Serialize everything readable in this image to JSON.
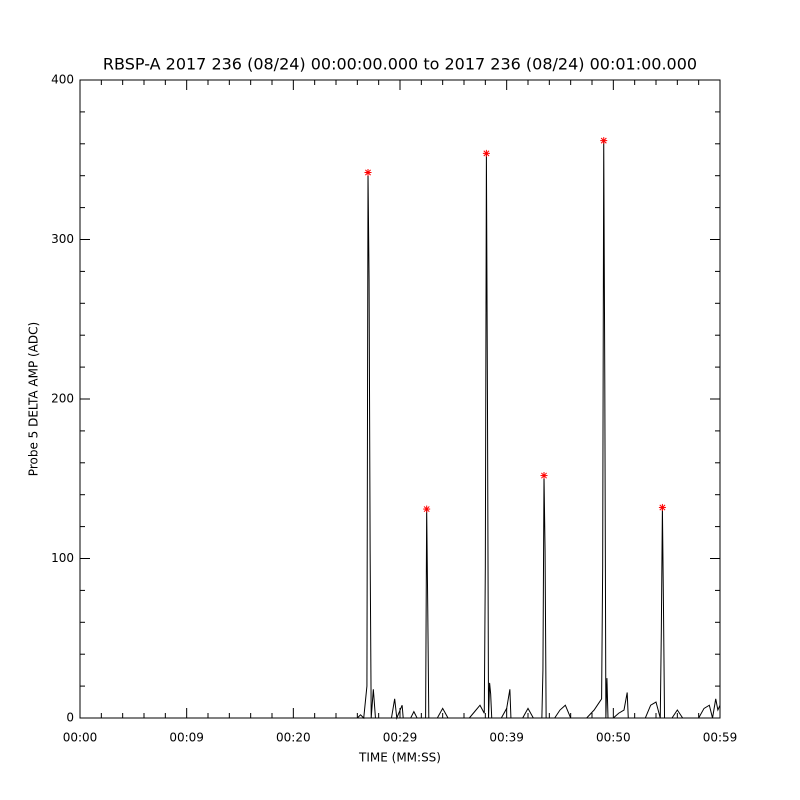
{
  "chart_data": {
    "type": "line",
    "title": "RBSP-A 2017 236 (08/24) 00:00:00.000 to 2017 236 (08/24) 00:01:00.000",
    "x_label": "TIME (MM:SS)",
    "y_label": "Probe 5 DELTA AMP (ADC)",
    "xlim": [
      0,
      60
    ],
    "xticks": [
      {
        "value": 0,
        "label": "00:00"
      },
      {
        "value": 10,
        "label": "00:09"
      },
      {
        "value": 20,
        "label": "00:20"
      },
      {
        "value": 30,
        "label": "00:29"
      },
      {
        "value": 40,
        "label": "00:39"
      },
      {
        "value": 50,
        "label": "00:50"
      },
      {
        "value": 60,
        "label": "00:59"
      }
    ],
    "ylim": [
      0,
      400
    ],
    "yticks": [
      0,
      100,
      200,
      300,
      400
    ],
    "series": [
      {
        "color": "#000000",
        "x": [
          0,
          26.0,
          26.3,
          26.6,
          26.9,
          27.0,
          27.1,
          27.2,
          27.3,
          27.5,
          27.7,
          29.2,
          29.5,
          29.7,
          30.2,
          30.3,
          31.0,
          31.3,
          31.6,
          32.4,
          32.5,
          32.6,
          32.7,
          33.5,
          34.0,
          34.5,
          36.5,
          37.0,
          37.5,
          37.9,
          38.0,
          38.1,
          38.2,
          38.3,
          38.4,
          38.5,
          38.6,
          39.5,
          40.0,
          40.3,
          40.4,
          41.5,
          42.0,
          42.5,
          43.3,
          43.4,
          43.5,
          43.6,
          43.7,
          44.5,
          45.0,
          45.5,
          46.0,
          47.5,
          48.2,
          48.7,
          48.9,
          49.0,
          49.1,
          49.2,
          49.3,
          49.4,
          49.5,
          50.0,
          50.5,
          51.0,
          51.3,
          51.4,
          53.0,
          53.5,
          54.0,
          54.4,
          54.5,
          54.6,
          54.7,
          54.8,
          55.5,
          56.0,
          56.5,
          58.0,
          58.5,
          59.0,
          59.3,
          59.6,
          59.8,
          60
        ],
        "values": [
          0,
          0,
          2,
          0,
          20,
          342,
          275,
          105,
          0,
          18,
          0,
          0,
          12,
          0,
          8,
          0,
          0,
          4,
          0,
          0,
          131,
          70,
          0,
          0,
          6,
          0,
          0,
          4,
          8,
          3,
          95,
          354,
          198,
          0,
          22,
          15,
          0,
          0,
          6,
          18,
          0,
          0,
          6,
          0,
          0,
          30,
          152,
          105,
          0,
          0,
          5,
          8,
          0,
          0,
          5,
          10,
          12,
          95,
          362,
          210,
          0,
          25,
          0,
          0,
          3,
          5,
          16,
          0,
          0,
          8,
          10,
          0,
          55,
          132,
          70,
          0,
          0,
          5,
          0,
          0,
          6,
          8,
          0,
          12,
          5,
          8
        ]
      }
    ],
    "markers": {
      "color": "#ff0000",
      "x": [
        27.0,
        32.5,
        38.1,
        43.5,
        49.1,
        54.6
      ],
      "values": [
        342,
        131,
        354,
        152,
        362,
        132
      ]
    }
  }
}
